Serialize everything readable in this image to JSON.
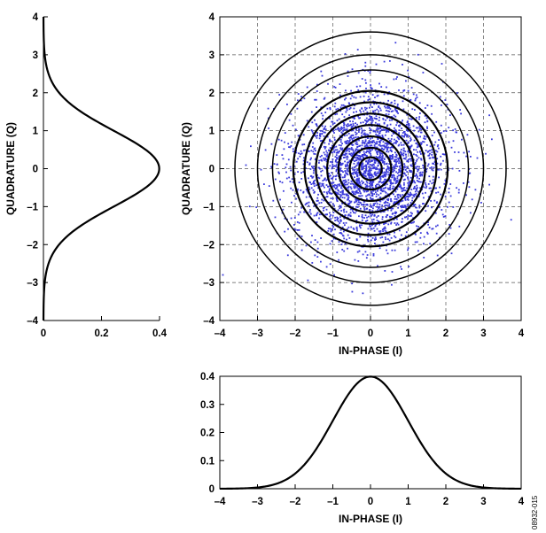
{
  "figure_id": "08932-015",
  "colors": {
    "scatter": "#3a3adb",
    "curve": "#000000",
    "grid": "#555555"
  },
  "chart_data": [
    {
      "id": "left",
      "type": "line",
      "orientation": "vertical",
      "xlabel": "",
      "ylabel": "QUADRATURE (Q)",
      "xlim": [
        0,
        0.4
      ],
      "ylim": [
        -4,
        4
      ],
      "x_ticks": [
        "0",
        "0.2",
        "0.4"
      ],
      "y_ticks": [
        "–4",
        "–3",
        "–2",
        "–1",
        "0",
        "1",
        "2",
        "3",
        "4"
      ],
      "grid": false,
      "series": [
        {
          "function": "standard normal pdf",
          "mean": 0,
          "sd": 1,
          "peak": 0.399
        }
      ]
    },
    {
      "id": "main",
      "type": "scatter",
      "xlabel": "IN-PHASE (I)",
      "ylabel": "QUADRATURE (Q)",
      "xlim": [
        -4,
        4
      ],
      "ylim": [
        -4,
        4
      ],
      "x_ticks": [
        "–4",
        "–3",
        "–2",
        "–1",
        "0",
        "1",
        "2",
        "3",
        "4"
      ],
      "y_ticks": [
        "–4",
        "–3",
        "–2",
        "–1",
        "0",
        "1",
        "2",
        "3",
        "4"
      ],
      "grid": true,
      "points": {
        "count": 3000,
        "distribution": "2D standard normal",
        "mean": [
          0,
          0
        ],
        "sd": 1
      },
      "circle_radii": [
        0.3,
        0.55,
        0.85,
        1.15,
        1.45,
        1.75,
        2.05,
        2.6,
        3.0,
        3.6
      ]
    },
    {
      "id": "bottom",
      "type": "line",
      "xlabel": "IN-PHASE (I)",
      "ylabel": "",
      "xlim": [
        -4,
        4
      ],
      "ylim": [
        0,
        0.4
      ],
      "x_ticks": [
        "–4",
        "–3",
        "–2",
        "–1",
        "0",
        "1",
        "2",
        "3",
        "4"
      ],
      "y_ticks": [
        "0",
        "0.1",
        "0.2",
        "0.3",
        "0.4"
      ],
      "grid": false,
      "series": [
        {
          "function": "standard normal pdf",
          "mean": 0,
          "sd": 1,
          "peak": 0.399
        }
      ]
    }
  ]
}
